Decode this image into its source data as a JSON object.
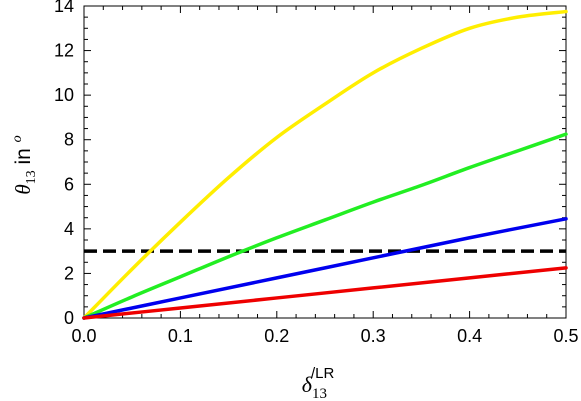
{
  "chart_data": {
    "type": "line",
    "xlabel": {
      "main": "δ",
      "sup": "/LR",
      "sub": "13"
    },
    "ylabel": {
      "main": "θ",
      "sub": "13",
      "mid": " in ",
      "sup": "o"
    },
    "xlim": [
      0,
      0.5
    ],
    "ylim": [
      0,
      14
    ],
    "x_ticks": [
      "0.0",
      "0.1",
      "0.2",
      "0.3",
      "0.4",
      "0.5"
    ],
    "y_ticks": [
      "0",
      "2",
      "4",
      "6",
      "8",
      "10",
      "12",
      "14"
    ],
    "grid": false,
    "reference_line": {
      "y": 3,
      "style": "dashed",
      "color": "#000000"
    },
    "series": [
      {
        "color": "#ffee00",
        "x": [
          0,
          0.05,
          0.1,
          0.15,
          0.2,
          0.25,
          0.3,
          0.35,
          0.4,
          0.45,
          0.5
        ],
        "y": [
          0,
          2.2,
          4.3,
          6.3,
          8.1,
          9.6,
          11.0,
          12.1,
          13.0,
          13.5,
          13.75
        ]
      },
      {
        "color": "#22ee22",
        "x": [
          0,
          0.05,
          0.1,
          0.15,
          0.2,
          0.25,
          0.3,
          0.35,
          0.4,
          0.45,
          0.5
        ],
        "y": [
          0,
          0.95,
          1.85,
          2.75,
          3.6,
          4.4,
          5.2,
          5.95,
          6.75,
          7.5,
          8.25
        ]
      },
      {
        "color": "#0000ee",
        "x": [
          0,
          0.1,
          0.2,
          0.3,
          0.4,
          0.5
        ],
        "y": [
          0,
          0.9,
          1.8,
          2.7,
          3.6,
          4.45
        ]
      },
      {
        "color": "#ee0000",
        "x": [
          0,
          0.1,
          0.2,
          0.3,
          0.4,
          0.5
        ],
        "y": [
          0,
          0.45,
          0.9,
          1.35,
          1.8,
          2.25
        ]
      }
    ]
  }
}
